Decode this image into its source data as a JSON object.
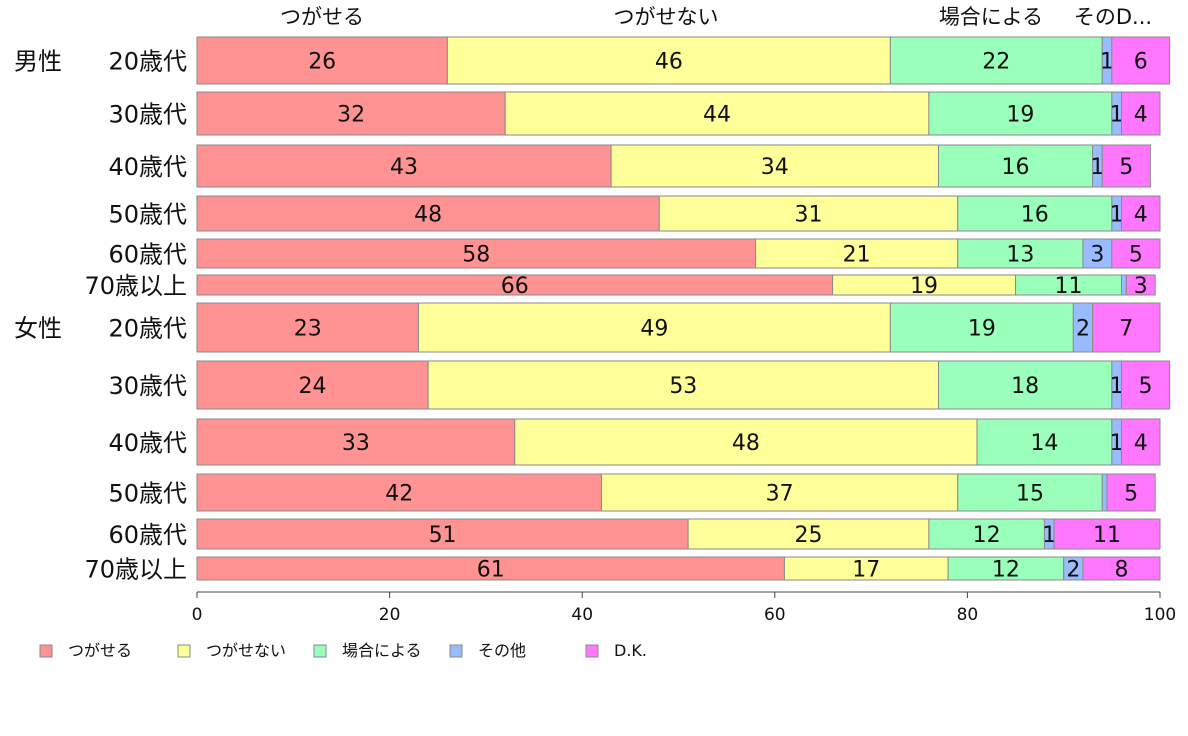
{
  "chart_data": {
    "type": "bar",
    "orientation": "horizontal",
    "stacked": true,
    "xlim": [
      0,
      100
    ],
    "xticks": [
      0,
      20,
      40,
      60,
      80,
      100
    ],
    "top_labels": [
      "つがせる",
      "つがせない",
      "場合による",
      "そのD..."
    ],
    "groups": [
      {
        "label": "男性",
        "rows": [
          "20歳代",
          "30歳代",
          "40歳代",
          "50歳代",
          "60歳代",
          "70歳以上"
        ]
      },
      {
        "label": "女性",
        "rows": [
          "20歳代",
          "30歳代",
          "40歳代",
          "50歳代",
          "60歳代",
          "70歳以上"
        ]
      }
    ],
    "series": [
      {
        "name": "つがせる",
        "color": "#ff9393",
        "values": [
          26,
          32,
          43,
          48,
          58,
          66,
          23,
          24,
          33,
          42,
          51,
          61
        ]
      },
      {
        "name": "つがせない",
        "color": "#ffff99",
        "values": [
          46,
          44,
          34,
          31,
          21,
          19,
          49,
          53,
          48,
          37,
          25,
          17
        ]
      },
      {
        "name": "場合による",
        "color": "#99ffbb",
        "values": [
          22,
          19,
          16,
          16,
          13,
          11,
          19,
          18,
          14,
          15,
          12,
          12
        ]
      },
      {
        "name": "その他",
        "color": "#99bbff",
        "values": [
          1,
          1,
          1,
          1,
          3,
          0.5,
          2,
          1,
          1,
          0.5,
          1,
          2
        ]
      },
      {
        "name": "D.K.",
        "color": "#ff77ff",
        "values": [
          6,
          4,
          5,
          4,
          5,
          3,
          7,
          5,
          4,
          5,
          11,
          8
        ]
      }
    ],
    "segment_labels": [
      [
        "26",
        "46",
        "22",
        "1",
        "6"
      ],
      [
        "32",
        "44",
        "19",
        "1",
        "4"
      ],
      [
        "43",
        "34",
        "16",
        "1",
        "5"
      ],
      [
        "48",
        "31",
        "16",
        "1",
        "4"
      ],
      [
        "58",
        "21",
        "13",
        "3",
        "5"
      ],
      [
        "66",
        "19",
        "11",
        "",
        "3"
      ],
      [
        "23",
        "49",
        "19",
        "2",
        "7"
      ],
      [
        "24",
        "53",
        "18",
        "1",
        "5"
      ],
      [
        "33",
        "48",
        "14",
        "1",
        "4"
      ],
      [
        "42",
        "37",
        "15",
        "",
        "5"
      ],
      [
        "51",
        "25",
        "12",
        "1",
        "11"
      ],
      [
        "61",
        "17",
        "12",
        "2",
        "8"
      ]
    ],
    "legend": [
      "つがせる",
      "つがせない",
      "場合による",
      "その他",
      "D.K."
    ],
    "legend_position": "bottom-left"
  }
}
